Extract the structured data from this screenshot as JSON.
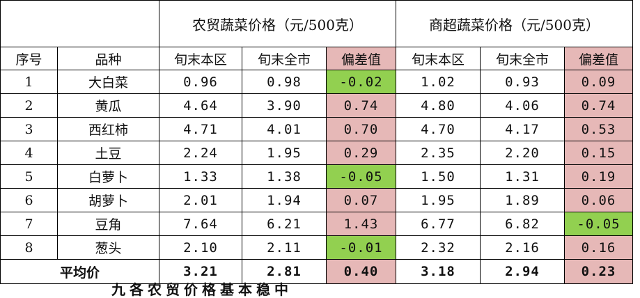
{
  "header": {
    "group_farm": "农贸蔬菜价格（元/500克）",
    "group_super": "商超蔬菜价格（元/500克）",
    "col_index": "序号",
    "col_variety": "品种",
    "farm_local": "旬末本区",
    "farm_city": "旬末全市",
    "farm_diff": "偏差值",
    "super_local": "旬末本区",
    "super_city": "旬末全市",
    "super_diff": "偏差值"
  },
  "rows": [
    {
      "no": "1",
      "name": "大白菜",
      "f_local": "0.96",
      "f_city": "0.98",
      "f_diff": "-0.02",
      "s_local": "1.02",
      "s_city": "0.93",
      "s_diff": "0.09"
    },
    {
      "no": "2",
      "name": "黄瓜",
      "f_local": "4.64",
      "f_city": "3.90",
      "f_diff": "0.74",
      "s_local": "4.80",
      "s_city": "4.06",
      "s_diff": "0.74"
    },
    {
      "no": "3",
      "name": "西红柿",
      "f_local": "4.71",
      "f_city": "4.01",
      "f_diff": "0.70",
      "s_local": "4.70",
      "s_city": "4.17",
      "s_diff": "0.53"
    },
    {
      "no": "4",
      "name": "土豆",
      "f_local": "2.24",
      "f_city": "1.95",
      "f_diff": "0.29",
      "s_local": "2.35",
      "s_city": "2.20",
      "s_diff": "0.15"
    },
    {
      "no": "5",
      "name": "白萝卜",
      "f_local": "1.33",
      "f_city": "1.38",
      "f_diff": "-0.05",
      "s_local": "1.50",
      "s_city": "1.31",
      "s_diff": "0.19"
    },
    {
      "no": "6",
      "name": "胡萝卜",
      "f_local": "2.01",
      "f_city": "1.94",
      "f_diff": "0.07",
      "s_local": "1.95",
      "s_city": "1.89",
      "s_diff": "0.06"
    },
    {
      "no": "7",
      "name": "豆角",
      "f_local": "7.64",
      "f_city": "6.21",
      "f_diff": "1.43",
      "s_local": "6.77",
      "s_city": "6.82",
      "s_diff": "-0.05"
    },
    {
      "no": "8",
      "name": "葱头",
      "f_local": "2.10",
      "f_city": "2.11",
      "f_diff": "-0.01",
      "s_local": "2.32",
      "s_city": "2.16",
      "s_diff": "0.16"
    }
  ],
  "average": {
    "label": "平均价",
    "f_local": "3.21",
    "f_city": "2.81",
    "f_diff": "0.40",
    "s_local": "3.18",
    "s_city": "2.94",
    "s_diff": "0.23"
  },
  "colors": {
    "positive_diff": "#e6b8b7",
    "negative_diff": "#92d050"
  },
  "clipped_line": "九各农贸价格基本稳中"
}
